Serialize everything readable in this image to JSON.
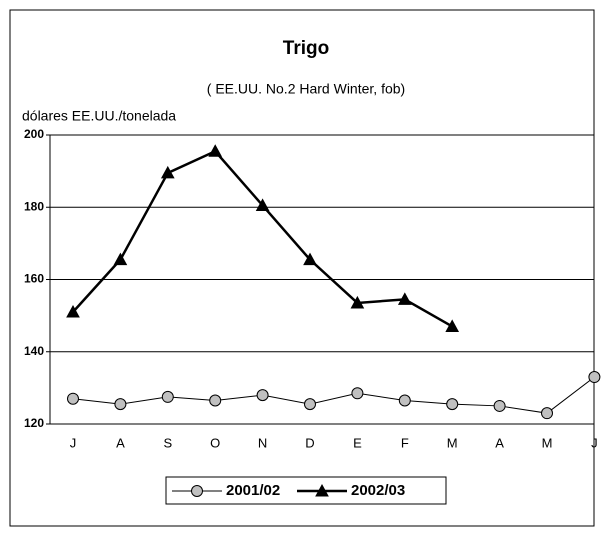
{
  "chart_data": {
    "type": "line",
    "title": "Trigo",
    "subtitle": "( EE.UU. No.2 Hard Winter, fob)",
    "y_label": "dólares EE.UU./tonelada",
    "categories": [
      "J",
      "A",
      "S",
      "O",
      "N",
      "D",
      "E",
      "F",
      "M",
      "A",
      "M",
      "J"
    ],
    "series": [
      {
        "name": "2001/02",
        "color": "#c0c0c0",
        "marker": "circle",
        "values": [
          127,
          125.5,
          127.5,
          126.5,
          128,
          125.5,
          128.5,
          126.5,
          125.5,
          125,
          123,
          133
        ]
      },
      {
        "name": "2002/03",
        "color": "#000000",
        "marker": "triangle",
        "values": [
          151,
          165.5,
          189.5,
          195.5,
          180.5,
          165.5,
          153.5,
          154.5,
          147,
          null,
          null,
          null
        ]
      }
    ],
    "ylim": [
      120,
      200
    ],
    "yticks": [
      120,
      140,
      160,
      180,
      200
    ],
    "grid": true,
    "legend": "bottom"
  }
}
